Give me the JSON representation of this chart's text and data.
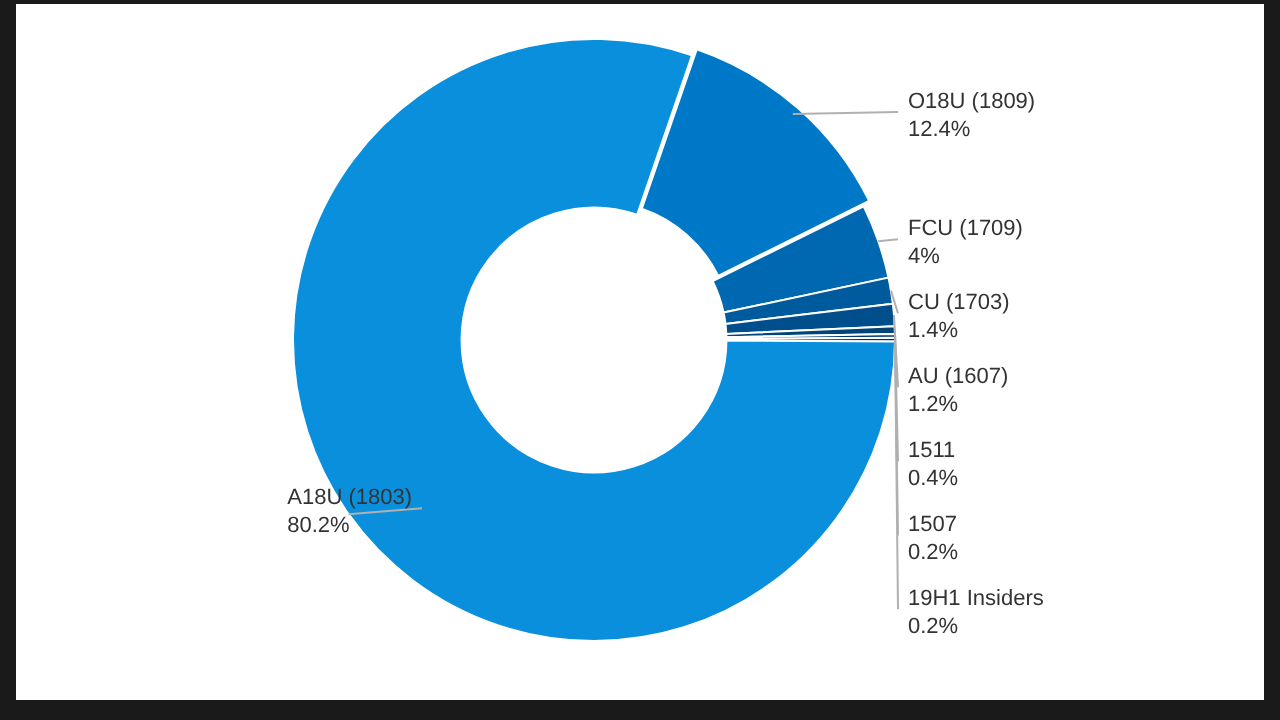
{
  "chart_data": {
    "type": "donut",
    "categories": [
      "O18U (1809)",
      "FCU (1709)",
      "CU (1703)",
      "AU (1607)",
      "1511",
      "1507",
      "19H1 Insiders",
      "A18U (1803)"
    ],
    "values": [
      12.4,
      4,
      1.4,
      1.2,
      0.4,
      0.2,
      0.2,
      80.2
    ],
    "value_labels": [
      "12.4%",
      "4%",
      "1.4%",
      "1.2%",
      "0.4%",
      "0.2%",
      "0.2%",
      "80.2%"
    ],
    "colors": [
      "#0078c8",
      "#0068b0",
      "#005a9e",
      "#004e8c",
      "#00457a",
      "#003d6b",
      "#00335a",
      "#0a8fdc"
    ],
    "legend": false
  }
}
